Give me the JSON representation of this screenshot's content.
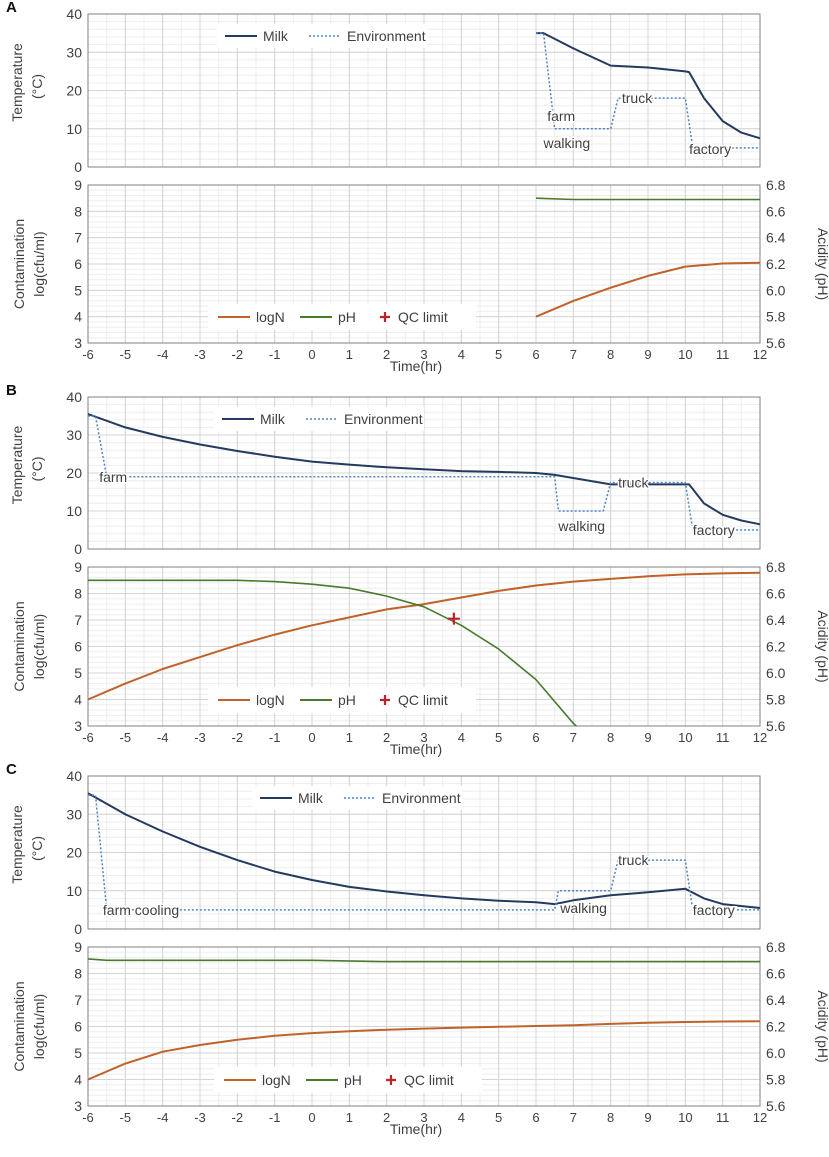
{
  "figure": {
    "panels": [
      {
        "label": "A",
        "temp_title": [
          "Temperature",
          "(°C)"
        ],
        "temp_ticks": [
          "0",
          "10",
          "20",
          "30",
          "40"
        ],
        "contam_title": [
          "Contamination",
          "log(cfu/ml)"
        ],
        "contam_ticks": [
          "3",
          "4",
          "5",
          "6",
          "7",
          "8",
          "9"
        ],
        "acid_title": "Acidity (pH)",
        "acid_ticks": [
          "5.6",
          "5.8",
          "6.0",
          "6.2",
          "6.4",
          "6.6",
          "6.8"
        ],
        "x_ticks": [
          "-6",
          "-5",
          "-4",
          "-3",
          "-2",
          "-1",
          "0",
          "1",
          "2",
          "3",
          "4",
          "5",
          "6",
          "7",
          "8",
          "9",
          "10",
          "11",
          "12"
        ],
        "x_label": "Time(hr)",
        "legend_temp": [
          "Milk",
          "Environment"
        ],
        "legend_contam": [
          "logN",
          "pH",
          "QC limit"
        ],
        "annotations": [
          "farm",
          "walking",
          "truck",
          "factory"
        ]
      },
      {
        "label": "B",
        "temp_title": [
          "Temperature",
          "(°C)"
        ],
        "temp_ticks": [
          "0",
          "10",
          "20",
          "30",
          "40"
        ],
        "contam_title": [
          "Contamination",
          "log(cfu/ml)"
        ],
        "contam_ticks": [
          "3",
          "4",
          "5",
          "6",
          "7",
          "8",
          "9"
        ],
        "acid_title": "Acidity (pH)",
        "acid_ticks": [
          "5.6",
          "5.8",
          "6.0",
          "6.2",
          "6.4",
          "6.6",
          "6.8"
        ],
        "x_ticks": [
          "-6",
          "-5",
          "-4",
          "-3",
          "-2",
          "-1",
          "0",
          "1",
          "2",
          "3",
          "4",
          "5",
          "6",
          "7",
          "8",
          "9",
          "10",
          "11",
          "12"
        ],
        "x_label": "Time(hr)",
        "legend_temp": [
          "Milk",
          "Environment"
        ],
        "legend_contam": [
          "logN",
          "pH",
          "QC limit"
        ],
        "annotations": [
          "farm",
          "walking",
          "truck",
          "factory"
        ]
      },
      {
        "label": "C",
        "temp_title": [
          "Temperature",
          "(°C)"
        ],
        "temp_ticks": [
          "0",
          "10",
          "20",
          "30",
          "40"
        ],
        "contam_title": [
          "Contamination",
          "log(cfu/ml)"
        ],
        "contam_ticks": [
          "3",
          "4",
          "5",
          "6",
          "7",
          "8",
          "9"
        ],
        "acid_title": "Acidity (pH)",
        "acid_ticks": [
          "5.6",
          "5.8",
          "6.0",
          "6.2",
          "6.4",
          "6.6",
          "6.8"
        ],
        "x_ticks": [
          "-6",
          "-5",
          "-4",
          "-3",
          "-2",
          "-1",
          "0",
          "1",
          "2",
          "3",
          "4",
          "5",
          "6",
          "7",
          "8",
          "9",
          "10",
          "11",
          "12"
        ],
        "x_label": "Time(hr)",
        "legend_temp": [
          "Milk",
          "Environment"
        ],
        "legend_contam": [
          "logN",
          "pH",
          "QC limit"
        ],
        "annotations": [
          "farm cooling",
          "walking",
          "truck",
          "factory"
        ]
      }
    ]
  },
  "colors": {
    "milk": "#243a5e",
    "environment": "#4f86c6",
    "logN": "#c0622a",
    "pH": "#4a7a2c",
    "qc": "#c0202a",
    "grid_major": "#d4d4d4",
    "grid_minor": "#eeeeee",
    "axis": "#808080",
    "text": "#404040"
  },
  "chart_data": [
    {
      "type": "line",
      "panel": "A",
      "chart": "temperature",
      "xlabel": "Time(hr)",
      "ylabel": "Temperature (°C)",
      "xlim": [
        -6,
        12
      ],
      "ylim": [
        0,
        40
      ],
      "series": [
        {
          "name": "Milk",
          "style": "solid",
          "points": [
            [
              6,
              35
            ],
            [
              6.2,
              35
            ],
            [
              7,
              31
            ],
            [
              8,
              26.5
            ],
            [
              9,
              26
            ],
            [
              10,
              25
            ],
            [
              10.1,
              24.8
            ],
            [
              10.5,
              18
            ],
            [
              11,
              12
            ],
            [
              11.5,
              9
            ],
            [
              12,
              7.5
            ]
          ]
        },
        {
          "name": "Environment",
          "style": "dotted",
          "points": [
            [
              6,
              35
            ],
            [
              6.2,
              35
            ],
            [
              6.5,
              10
            ],
            [
              8,
              10
            ],
            [
              8.2,
              18
            ],
            [
              10,
              18
            ],
            [
              10.2,
              5
            ],
            [
              12,
              5
            ]
          ]
        }
      ]
    },
    {
      "type": "line",
      "panel": "A",
      "chart": "contamination",
      "xlabel": "Time(hr)",
      "ylabel": "Contamination log(cfu/ml)",
      "y2label": "Acidity (pH)",
      "xlim": [
        -6,
        12
      ],
      "ylim": [
        3,
        9
      ],
      "y2lim": [
        5.6,
        6.8
      ],
      "series": [
        {
          "name": "logN",
          "axis": "left",
          "points": [
            [
              6,
              4
            ],
            [
              7,
              4.6
            ],
            [
              8,
              5.1
            ],
            [
              9,
              5.55
            ],
            [
              10,
              5.9
            ],
            [
              11,
              6.02
            ],
            [
              12,
              6.05
            ]
          ]
        },
        {
          "name": "pH",
          "axis": "right",
          "points": [
            [
              6,
              6.7
            ],
            [
              7,
              6.69
            ],
            [
              10,
              6.69
            ],
            [
              12,
              6.69
            ]
          ]
        }
      ],
      "qc_limit": []
    },
    {
      "type": "line",
      "panel": "B",
      "chart": "temperature",
      "xlabel": "Time(hr)",
      "ylabel": "Temperature (°C)",
      "xlim": [
        -6,
        12
      ],
      "ylim": [
        0,
        40
      ],
      "series": [
        {
          "name": "Milk",
          "style": "solid",
          "points": [
            [
              -6,
              35.5
            ],
            [
              -5,
              32
            ],
            [
              -4,
              29.5
            ],
            [
              -3,
              27.5
            ],
            [
              -2,
              25.8
            ],
            [
              -1,
              24.3
            ],
            [
              0,
              23
            ],
            [
              1,
              22.2
            ],
            [
              2,
              21.5
            ],
            [
              3,
              21
            ],
            [
              4,
              20.5
            ],
            [
              5,
              20.3
            ],
            [
              6,
              20
            ],
            [
              6.5,
              19.5
            ],
            [
              8,
              17
            ],
            [
              9,
              17
            ],
            [
              10,
              17
            ],
            [
              10.1,
              17
            ],
            [
              10.5,
              12
            ],
            [
              11,
              9
            ],
            [
              11.5,
              7.5
            ],
            [
              12,
              6.5
            ]
          ]
        },
        {
          "name": "Environment",
          "style": "dotted",
          "points": [
            [
              -6,
              35
            ],
            [
              -5.8,
              35
            ],
            [
              -5.5,
              19
            ],
            [
              6.5,
              19
            ],
            [
              6.6,
              10
            ],
            [
              7.8,
              10
            ],
            [
              8,
              17.5
            ],
            [
              10,
              17.5
            ],
            [
              10.2,
              5
            ],
            [
              12,
              5
            ]
          ]
        }
      ]
    },
    {
      "type": "line",
      "panel": "B",
      "chart": "contamination",
      "xlabel": "Time(hr)",
      "ylabel": "Contamination log(cfu/ml)",
      "y2label": "Acidity (pH)",
      "xlim": [
        -6,
        12
      ],
      "ylim": [
        3,
        9
      ],
      "y2lim": [
        5.6,
        6.8
      ],
      "series": [
        {
          "name": "logN",
          "axis": "left",
          "points": [
            [
              -6,
              4
            ],
            [
              -5,
              4.6
            ],
            [
              -4,
              5.15
            ],
            [
              -3,
              5.6
            ],
            [
              -2,
              6.05
            ],
            [
              -1,
              6.45
            ],
            [
              0,
              6.8
            ],
            [
              1,
              7.1
            ],
            [
              2,
              7.4
            ],
            [
              3,
              7.6
            ],
            [
              4,
              7.85
            ],
            [
              5,
              8.1
            ],
            [
              6,
              8.3
            ],
            [
              7,
              8.45
            ],
            [
              8,
              8.55
            ],
            [
              9,
              8.65
            ],
            [
              10,
              8.72
            ],
            [
              11,
              8.76
            ],
            [
              12,
              8.78
            ]
          ]
        },
        {
          "name": "pH",
          "axis": "right",
          "points": [
            [
              -6,
              6.7
            ],
            [
              -4,
              6.7
            ],
            [
              -2,
              6.7
            ],
            [
              -1,
              6.69
            ],
            [
              0,
              6.67
            ],
            [
              1,
              6.64
            ],
            [
              2,
              6.58
            ],
            [
              3,
              6.5
            ],
            [
              4,
              6.36
            ],
            [
              5,
              6.18
            ],
            [
              6,
              5.95
            ],
            [
              7,
              5.62
            ],
            [
              7.08,
              5.6
            ]
          ]
        }
      ],
      "qc_limit": [
        [
          3.8,
          7.05
        ]
      ]
    },
    {
      "type": "line",
      "panel": "C",
      "chart": "temperature",
      "xlabel": "Time(hr)",
      "ylabel": "Temperature (°C)",
      "xlim": [
        -6,
        12
      ],
      "ylim": [
        0,
        40
      ],
      "series": [
        {
          "name": "Milk",
          "style": "solid",
          "points": [
            [
              -6,
              35.5
            ],
            [
              -5,
              30
            ],
            [
              -4,
              25.5
            ],
            [
              -3,
              21.5
            ],
            [
              -2,
              18
            ],
            [
              -1,
              15
            ],
            [
              0,
              12.8
            ],
            [
              1,
              11
            ],
            [
              2,
              9.8
            ],
            [
              3,
              8.8
            ],
            [
              4,
              8
            ],
            [
              5,
              7.4
            ],
            [
              6,
              7
            ],
            [
              6.5,
              6.5
            ],
            [
              7,
              7.5
            ],
            [
              8,
              8.8
            ],
            [
              9,
              9.6
            ],
            [
              10,
              10.5
            ],
            [
              10.5,
              8
            ],
            [
              11,
              6.5
            ],
            [
              12,
              5.5
            ]
          ]
        },
        {
          "name": "Environment",
          "style": "dotted",
          "points": [
            [
              -6,
              35
            ],
            [
              -5.8,
              35
            ],
            [
              -5.5,
              5
            ],
            [
              6.5,
              5
            ],
            [
              6.6,
              10
            ],
            [
              8,
              10
            ],
            [
              8.2,
              18
            ],
            [
              10,
              18
            ],
            [
              10.2,
              5
            ],
            [
              12,
              5
            ]
          ]
        }
      ]
    },
    {
      "type": "line",
      "panel": "C",
      "chart": "contamination",
      "xlabel": "Time(hr)",
      "ylabel": "Contamination log(cfu/ml)",
      "y2label": "Acidity (pH)",
      "xlim": [
        -6,
        12
      ],
      "ylim": [
        3,
        9
      ],
      "y2lim": [
        5.6,
        6.8
      ],
      "series": [
        {
          "name": "logN",
          "axis": "left",
          "points": [
            [
              -6,
              4
            ],
            [
              -5,
              4.6
            ],
            [
              -4,
              5.05
            ],
            [
              -3,
              5.3
            ],
            [
              -2,
              5.5
            ],
            [
              -1,
              5.65
            ],
            [
              0,
              5.75
            ],
            [
              1,
              5.82
            ],
            [
              2,
              5.88
            ],
            [
              3,
              5.92
            ],
            [
              4,
              5.96
            ],
            [
              5,
              5.99
            ],
            [
              6,
              6.02
            ],
            [
              7,
              6.05
            ],
            [
              8,
              6.1
            ],
            [
              9,
              6.14
            ],
            [
              10,
              6.17
            ],
            [
              11,
              6.19
            ],
            [
              12,
              6.2
            ]
          ]
        },
        {
          "name": "pH",
          "axis": "right",
          "points": [
            [
              -6,
              6.71
            ],
            [
              -5.5,
              6.7
            ],
            [
              0,
              6.7
            ],
            [
              2,
              6.69
            ],
            [
              8,
              6.69
            ],
            [
              10,
              6.69
            ],
            [
              12,
              6.69
            ]
          ]
        }
      ],
      "qc_limit": []
    }
  ]
}
